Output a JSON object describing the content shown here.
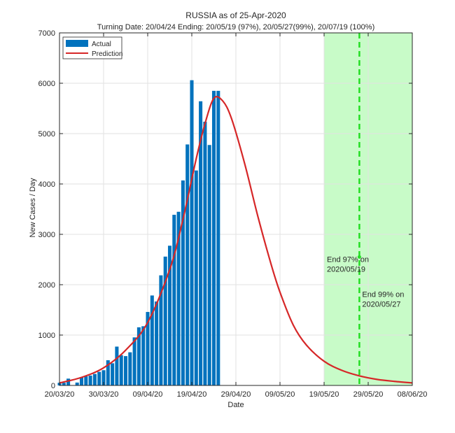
{
  "chart_data": {
    "type": "bar",
    "title": "RUSSIA as of 25-Apr-2020",
    "subtitle": "Turning Date: 20/04/24  Ending: 20/05/19 (97%), 20/05/27(99%), 20/07/19 (100%)",
    "xlabel": "Date",
    "ylabel": "New Cases / Day",
    "ylim": [
      0,
      7000
    ],
    "yticks": [
      0,
      1000,
      2000,
      3000,
      4000,
      5000,
      6000,
      7000
    ],
    "xlim": [
      "2020-03-20",
      "2020-06-08"
    ],
    "xticks": [
      {
        "date": "2020-03-20",
        "label": "20/03/20"
      },
      {
        "date": "2020-03-30",
        "label": "30/03/20"
      },
      {
        "date": "2020-04-09",
        "label": "09/04/20"
      },
      {
        "date": "2020-04-19",
        "label": "19/04/20"
      },
      {
        "date": "2020-04-29",
        "label": "29/04/20"
      },
      {
        "date": "2020-05-09",
        "label": "09/05/20"
      },
      {
        "date": "2020-05-19",
        "label": "19/05/20"
      },
      {
        "date": "2020-05-29",
        "label": "29/05/20"
      },
      {
        "date": "2020-06-08",
        "label": "08/06/20"
      }
    ],
    "grid": true,
    "legend": {
      "placement": "top-left",
      "entries": [
        "Actual",
        "Prediction"
      ]
    },
    "series": [
      {
        "name": "Actual",
        "kind": "bar",
        "color": "#0072BD",
        "x": [
          "2020-03-20",
          "2020-03-21",
          "2020-03-22",
          "2020-03-23",
          "2020-03-24",
          "2020-03-25",
          "2020-03-26",
          "2020-03-27",
          "2020-03-28",
          "2020-03-29",
          "2020-03-30",
          "2020-03-31",
          "2020-04-01",
          "2020-04-02",
          "2020-04-03",
          "2020-04-04",
          "2020-04-05",
          "2020-04-06",
          "2020-04-07",
          "2020-04-08",
          "2020-04-09",
          "2020-04-10",
          "2020-04-11",
          "2020-04-12",
          "2020-04-13",
          "2020-04-14",
          "2020-04-15",
          "2020-04-16",
          "2020-04-17",
          "2020-04-18",
          "2020-04-19",
          "2020-04-20",
          "2020-04-21",
          "2020-04-22",
          "2020-04-23",
          "2020-04-24",
          "2020-04-25"
        ],
        "values": [
          53,
          53,
          135,
          0,
          57,
          163,
          182,
          196,
          228,
          270,
          302,
          500,
          440,
          771,
          601,
          582,
          658,
          954,
          1154,
          1175,
          1459,
          1786,
          1667,
          2186,
          2558,
          2774,
          3388,
          3448,
          4070,
          4785,
          6060,
          4268,
          5642,
          5236,
          4774,
          5849,
          5849
        ]
      },
      {
        "name": "Prediction",
        "kind": "line",
        "color": "#D62728",
        "x": [
          "2020-03-20",
          "2020-03-25",
          "2020-03-30",
          "2020-04-04",
          "2020-04-09",
          "2020-04-14",
          "2020-04-17",
          "2020-04-20",
          "2020-04-22",
          "2020-04-24",
          "2020-04-26",
          "2020-04-28",
          "2020-05-01",
          "2020-05-04",
          "2020-05-07",
          "2020-05-09",
          "2020-05-12",
          "2020-05-15",
          "2020-05-19",
          "2020-05-23",
          "2020-05-27",
          "2020-05-31",
          "2020-06-04",
          "2020-06-08"
        ],
        "values": [
          50,
          160,
          350,
          700,
          1250,
          2300,
          3300,
          4500,
          5200,
          5700,
          5650,
          5300,
          4400,
          3350,
          2400,
          1850,
          1200,
          800,
          480,
          300,
          190,
          120,
          80,
          50
        ]
      }
    ],
    "shaded_region": {
      "from": "2020-05-19",
      "to": "2020-06-08",
      "color": "#C8FBC8"
    },
    "vertical_lines": [
      {
        "date": "2020-05-27",
        "color": "#22DD22",
        "style": "dashed"
      }
    ],
    "annotations": [
      {
        "line1": "End 97% on",
        "line2": "2020/05/19",
        "date": "2020-05-19",
        "y": 2450
      },
      {
        "line1": "End 99% on",
        "line2": "2020/05/27",
        "date": "2020-05-27",
        "y": 1760
      }
    ],
    "marker": {
      "date": "2020-05-27",
      "y": 2550,
      "color": "#22DD22"
    }
  }
}
